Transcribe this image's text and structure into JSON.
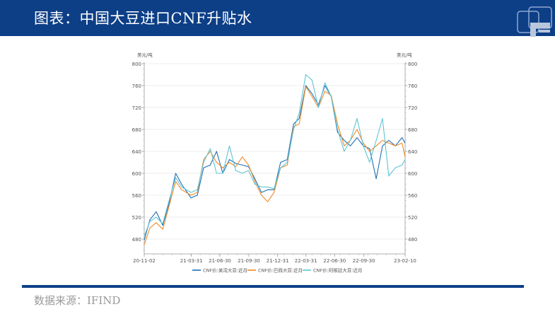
{
  "header": {
    "title": "图表：中国大豆进口CNF升贴水",
    "background_color": "#0d3f87",
    "logo_icon": "company-logo-icon"
  },
  "footer": {
    "source_text": "数据来源：IFIND",
    "bar_color": "#0d3f87"
  },
  "chart_data": {
    "type": "line",
    "title": "",
    "xlabel": "",
    "ylabel_left": "美元/吨",
    "ylabel_right": "美元/吨",
    "ylim": [
      460,
      800
    ],
    "yticks": [
      480,
      520,
      560,
      600,
      640,
      680,
      720,
      760,
      800
    ],
    "grid": true,
    "legend_position": "bottom",
    "x_tick_labels": [
      "20-11-02",
      "21-03-31",
      "21-06-30",
      "21-09-30",
      "21-12-31",
      "22-03-31",
      "22-06-30",
      "22-09-30",
      "23-02-10"
    ],
    "x": [
      "20-11-02",
      "20-11-20",
      "20-12-10",
      "20-12-31",
      "21-01-20",
      "21-02-10",
      "21-03-01",
      "21-03-31",
      "21-04-20",
      "21-05-10",
      "21-05-31",
      "21-06-20",
      "21-07-10",
      "21-07-31",
      "21-08-20",
      "21-09-10",
      "21-09-30",
      "21-10-20",
      "21-11-10",
      "21-11-30",
      "21-12-20",
      "22-01-10",
      "22-01-31",
      "22-02-20",
      "22-03-10",
      "22-03-31",
      "22-04-20",
      "22-05-10",
      "22-05-31",
      "22-06-20",
      "22-07-10",
      "22-07-31",
      "22-08-20",
      "22-09-10",
      "22-09-30",
      "22-10-20",
      "22-11-10",
      "22-11-30",
      "22-12-20",
      "23-01-10",
      "23-01-31",
      "23-02-10"
    ],
    "series": [
      {
        "name": "CNF价:美湾大豆:近月",
        "color": "#1f6fb5",
        "values": [
          478,
          515,
          530,
          505,
          545,
          600,
          580,
          555,
          560,
          610,
          615,
          640,
          600,
          625,
          618,
          615,
          612,
          590,
          565,
          570,
          570,
          620,
          625,
          690,
          700,
          760,
          745,
          725,
          760,
          740,
          675,
          660,
          650,
          665,
          650,
          645,
          590,
          650,
          660,
          650,
          665,
          655
        ]
      },
      {
        "name": "CNF价:巴西大豆:近月",
        "color": "#f08a24",
        "values": [
          470,
          500,
          510,
          498,
          540,
          585,
          570,
          560,
          565,
          625,
          640,
          620,
          610,
          620,
          612,
          630,
          615,
          585,
          560,
          548,
          565,
          610,
          615,
          685,
          690,
          758,
          740,
          720,
          750,
          742,
          690,
          650,
          660,
          680,
          655,
          640,
          650,
          660,
          655,
          650,
          655,
          630
        ]
      },
      {
        "name": "CNF价:阿根廷大豆:近月",
        "color": "#5ec4d4",
        "values": [
          485,
          512,
          520,
          508,
          550,
          592,
          575,
          565,
          570,
          620,
          645,
          600,
          600,
          650,
          605,
          600,
          605,
          580,
          575,
          575,
          572,
          610,
          620,
          680,
          710,
          780,
          770,
          720,
          765,
          740,
          680,
          640,
          660,
          700,
          650,
          620,
          660,
          700,
          595,
          610,
          615,
          625
        ]
      }
    ]
  }
}
